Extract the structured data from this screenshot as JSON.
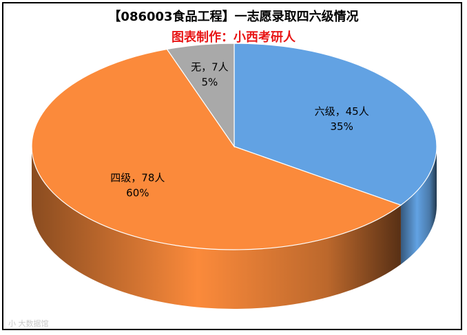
{
  "title": "【086003食品工程】一志愿录取四六级情况",
  "subtitle": "图表制作：小西考研人",
  "colors": {
    "subtitle": "#e81616",
    "six": "#62a2e3",
    "four": "#fb8a3b",
    "none": "#a9a9a9"
  },
  "watermark": "小 大数据馆",
  "chart_data": {
    "type": "pie",
    "title": "【086003食品工程】一志愿录取四六级情况",
    "subtitle": "图表制作：小西考研人",
    "three_d": true,
    "slices": [
      {
        "name": "六级",
        "count": 45,
        "count_label": "45人",
        "percent": 35,
        "percent_label": "35%",
        "color": "#62a2e3"
      },
      {
        "name": "四级",
        "count": 78,
        "count_label": "78人",
        "percent": 60,
        "percent_label": "60%",
        "color": "#fb8a3b"
      },
      {
        "name": "无",
        "count": 7,
        "count_label": "7人",
        "percent": 5,
        "percent_label": "5%",
        "color": "#a9a9a9"
      }
    ]
  }
}
